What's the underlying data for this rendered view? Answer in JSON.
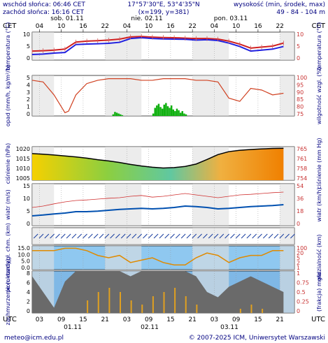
{
  "header": {
    "sunrise": "wschód słońca: 06:46 CET",
    "sunset": "zachód słońca: 16:16 CET",
    "coords": "17°57'30\"E, 53°4'35\"N",
    "grid": "(x=199, y=381)",
    "elevation_label": "wysokość (min, środek, max)",
    "elevation_values": "49 - 84 - 104 m"
  },
  "footer": {
    "email": "meteo@icm.edu.pl",
    "copyright": "© 2007-2025 ICM, Uniwersytet Warszawski"
  },
  "timezone_label": "CET",
  "utc_label": "UTC",
  "top_ticks": [
    "04",
    "10",
    "16",
    "22",
    "04",
    "10",
    "16",
    "22",
    "04",
    "10",
    "16",
    "22",
    "04"
  ],
  "day_labels": [
    "sob. 01.11",
    "nie. 02.11",
    "pon. 03.11"
  ],
  "bottom_ticks": [
    "03",
    "09",
    "15",
    "21",
    "03",
    "09",
    "15",
    "21",
    "03",
    "09",
    "15",
    "21",
    "03"
  ],
  "bottom_dates": [
    "01.11",
    "02.11",
    "03.11"
  ],
  "colors": {
    "label": "#000080",
    "temp": "#d02020",
    "dew": "#2020e0",
    "precip": "#10b010",
    "pressure_curve": "#000000"
  },
  "chart_data": [
    {
      "type": "line",
      "name": "temperatura",
      "ylabel_left": "temperatura (°C)",
      "ylabel_right": "temperatura (°C)",
      "yticks_left": [
        "10",
        "5",
        "0"
      ],
      "yticks_right": [
        "10",
        "5",
        "0"
      ],
      "ylim": [
        -1,
        13
      ],
      "x_hours": [
        0,
        3,
        6,
        9,
        12,
        15,
        18,
        21,
        24,
        27,
        30,
        33,
        36,
        39,
        42,
        45,
        48,
        51,
        54,
        57,
        60,
        63,
        66,
        69
      ],
      "series": [
        {
          "values": [
            3.5,
            3.7,
            4.0,
            4.5,
            8.0,
            8.5,
            8.7,
            9.0,
            9.5,
            10.6,
            10.8,
            10.5,
            10.3,
            10.2,
            10.0,
            9.8,
            9.8,
            9.5,
            8.5,
            7.0,
            5.0,
            5.5,
            6.0,
            7.5
          ]
        },
        {
          "values": [
            1.8,
            2.0,
            2.5,
            2.8,
            6.8,
            7.0,
            7.2,
            7.4,
            7.9,
            9.8,
            10.2,
            9.8,
            9.6,
            9.5,
            9.4,
            9.0,
            9.2,
            8.8,
            7.5,
            5.8,
            3.5,
            4.0,
            4.5,
            5.8
          ]
        }
      ]
    },
    {
      "type": "bar",
      "name": "opad",
      "ylabel_left": "opad (mm/h, kg/m²/h)",
      "ylabel_right": "wilgotność wzgl. (%)",
      "yticks_left": [
        "5",
        "4",
        "3",
        "2",
        "1",
        "0"
      ],
      "yticks_right": [
        "100",
        "95",
        "90",
        "85",
        "80",
        "75"
      ],
      "ylim": [
        0,
        5
      ],
      "y2lim": [
        75,
        100
      ],
      "precip_hours": [
        22,
        22.5,
        23,
        23.5,
        24,
        24.5,
        33,
        33.5,
        34,
        34.5,
        35,
        35.5,
        36,
        36.5,
        37,
        37.5,
        38,
        38.5,
        39,
        39.5,
        40,
        40.5,
        41,
        41.5,
        42
      ],
      "precip_values": [
        0.2,
        0.5,
        0.4,
        0.3,
        0.2,
        0.1,
        0.3,
        1.0,
        1.3,
        1.5,
        1.1,
        0.9,
        1.4,
        1.6,
        1.2,
        1.0,
        1.3,
        0.8,
        0.6,
        0.9,
        0.7,
        0.4,
        0.6,
        0.3,
        0.2
      ],
      "humidity_hours": [
        0,
        3,
        6,
        9,
        10,
        12,
        15,
        18,
        21,
        24,
        27,
        30,
        33,
        36,
        39,
        42,
        45,
        48,
        51,
        54,
        57,
        60,
        63,
        66,
        69
      ],
      "humidity_values": [
        97,
        96,
        88,
        77,
        78,
        88,
        95,
        97,
        98,
        98,
        98,
        97,
        97,
        98,
        98,
        98,
        97,
        97,
        96,
        86,
        84,
        92,
        91,
        88,
        89
      ]
    },
    {
      "type": "area",
      "name": "ciśnienie",
      "ylabel_left": "ciśnienie (hPa)",
      "ylabel_right": "ciśnienie (mm Hg)",
      "yticks_left": [
        "1020",
        "1015",
        "1010",
        "1005"
      ],
      "yticks_right": [
        "765",
        "761",
        "758",
        "754"
      ],
      "ylim": [
        1005,
        1022
      ],
      "x_hours": [
        0,
        3,
        6,
        9,
        12,
        15,
        18,
        21,
        24,
        27,
        30,
        33,
        36,
        39,
        42,
        45,
        48,
        51,
        54,
        57,
        60,
        63,
        66,
        69
      ],
      "values": [
        1018.5,
        1018.2,
        1017.8,
        1017.3,
        1016.8,
        1016.2,
        1015.4,
        1014.8,
        1014.0,
        1013.0,
        1012.2,
        1011.6,
        1011.2,
        1011.4,
        1012.0,
        1013.2,
        1015.5,
        1018.0,
        1019.5,
        1020.2,
        1020.6,
        1020.9,
        1021.1,
        1021.2
      ]
    },
    {
      "type": "line",
      "name": "wiatr",
      "ylabel_left": "wiatr (m/s)",
      "ylabel_right": "wiatr (km/h)",
      "yticks_left": [
        "15",
        "10",
        "5",
        "0"
      ],
      "yticks_right": [
        "54",
        "36",
        "18",
        "0"
      ],
      "ylim": [
        0,
        15
      ],
      "x_hours": [
        0,
        3,
        6,
        9,
        12,
        15,
        18,
        21,
        24,
        27,
        30,
        33,
        36,
        39,
        42,
        45,
        48,
        51,
        54,
        57,
        60,
        63,
        66,
        69
      ],
      "series": [
        {
          "values": [
            3.5,
            3.8,
            4.2,
            4.5,
            5.0,
            5.0,
            5.2,
            5.5,
            5.8,
            6.0,
            6.2,
            6.0,
            6.2,
            6.5,
            7.0,
            6.8,
            6.5,
            6.0,
            6.2,
            6.5,
            6.8,
            7.0,
            7.2,
            7.5
          ]
        },
        {
          "values": [
            6.5,
            7.0,
            7.8,
            8.5,
            9.0,
            9.2,
            9.5,
            9.8,
            10.0,
            10.5,
            10.8,
            10.2,
            10.5,
            11.0,
            11.5,
            11.0,
            10.5,
            10.0,
            10.5,
            11.0,
            11.2,
            11.5,
            11.8,
            12.0
          ]
        }
      ]
    },
    {
      "type": "scatter",
      "name": "chmury",
      "ylabel_left": "pion. rozciągł. chm. (km)",
      "ylabel_right": "widzialność (km)",
      "yticks_left": [
        "15.0",
        "10.0",
        "5.0",
        "0.0"
      ],
      "yticks_right": [
        "100",
        "20",
        "5",
        "2",
        "1"
      ],
      "ylim": [
        0,
        15
      ],
      "visibility_hours": [
        0,
        3,
        6,
        9,
        12,
        15,
        18,
        21,
        24,
        27,
        30,
        33,
        36,
        39,
        42,
        45,
        48,
        51,
        54,
        57,
        60,
        63,
        66,
        69
      ],
      "visibility_values": [
        8,
        8,
        8,
        9,
        9,
        8,
        6,
        5,
        6,
        3,
        4,
        5,
        3,
        2,
        2,
        5,
        7,
        6,
        3,
        5,
        6,
        6,
        8,
        8
      ]
    },
    {
      "type": "area",
      "name": "zachmurzenie",
      "ylabel_left": "zachmurzenie (oktanty)",
      "ylabel_right": "(frakcja) mgła",
      "yticks_left": [
        "8",
        "6",
        "4",
        "2",
        "0"
      ],
      "yticks_right": [
        "1",
        "0.75",
        "0.5",
        "0.25",
        "0"
      ],
      "ylim": [
        0,
        8
      ],
      "x_hours": [
        0,
        3,
        6,
        9,
        12,
        15,
        18,
        21,
        24,
        27,
        30,
        33,
        36,
        39,
        42,
        45,
        48,
        51,
        54,
        57,
        60,
        63,
        66,
        69
      ],
      "values": [
        7,
        4,
        1,
        6,
        8,
        8,
        8,
        8,
        8,
        7,
        8,
        8,
        8,
        8,
        8,
        7,
        4,
        3,
        5,
        6,
        7,
        6,
        5,
        4
      ],
      "fog_values": [
        0,
        0,
        0,
        0,
        0,
        0.3,
        0.5,
        0.6,
        0.5,
        0.3,
        0.2,
        0.4,
        0.5,
        0.6,
        0.4,
        0.2,
        0,
        0,
        0,
        0.1,
        0.2,
        0.1,
        0,
        0
      ]
    }
  ]
}
